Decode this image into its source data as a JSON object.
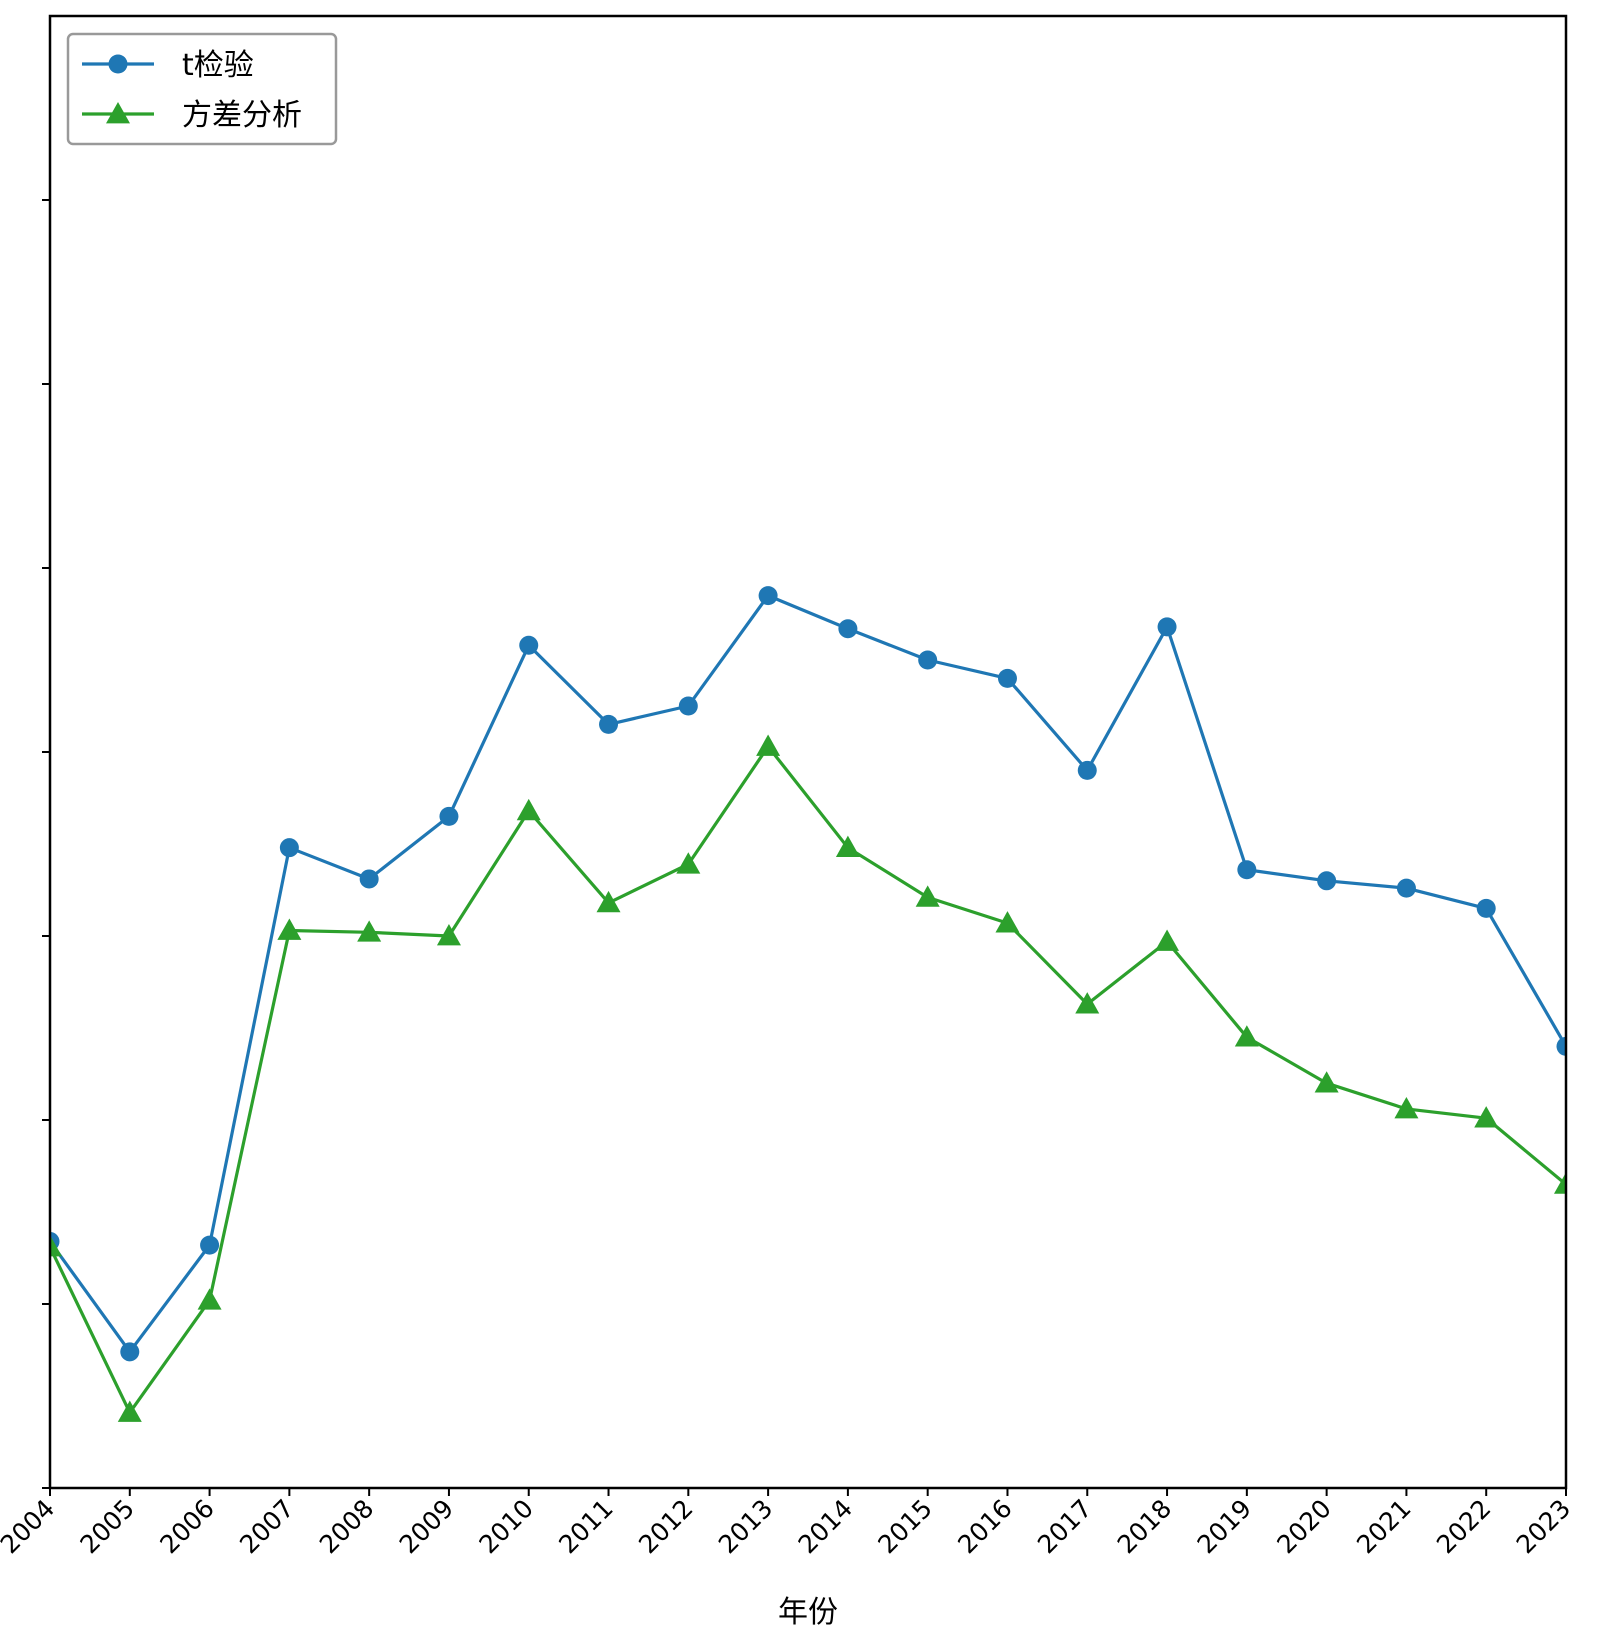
{
  "chart_data": {
    "type": "line",
    "x": [
      2004,
      2005,
      2006,
      2007,
      2008,
      2009,
      2010,
      2011,
      2012,
      2013,
      2014,
      2015,
      2016,
      2017,
      2018,
      2019,
      2020,
      2021,
      2022,
      2023
    ],
    "categories": [
      "2004",
      "2005",
      "2006",
      "2007",
      "2008",
      "2009",
      "2010",
      "2011",
      "2012",
      "2013",
      "2014",
      "2015",
      "2016",
      "2017",
      "2018",
      "2019",
      "2020",
      "2021",
      "2022",
      "2023"
    ],
    "xlabel": "年份",
    "ylabel": "",
    "ylim": [
      0,
      8
    ],
    "yticks": [
      0,
      1,
      2,
      3,
      4,
      5,
      6,
      7
    ],
    "ytick_labels_shown": false,
    "grid": false,
    "legend_position": "upper-left",
    "series": [
      {
        "name": "t检验",
        "color": "#1f77b4",
        "marker": "circle",
        "values": [
          1.34,
          0.74,
          1.32,
          3.48,
          3.31,
          3.65,
          4.58,
          4.15,
          4.25,
          4.85,
          4.67,
          4.5,
          4.4,
          3.9,
          4.68,
          3.36,
          3.3,
          3.26,
          3.15,
          2.4
        ]
      },
      {
        "name": "方差分析",
        "color": "#2ca02c",
        "marker": "triangle",
        "values": [
          1.31,
          0.41,
          1.02,
          3.03,
          3.02,
          3.0,
          3.68,
          3.18,
          3.39,
          4.03,
          3.48,
          3.21,
          3.07,
          2.63,
          2.97,
          2.45,
          2.2,
          2.06,
          2.01,
          1.65
        ]
      }
    ]
  }
}
